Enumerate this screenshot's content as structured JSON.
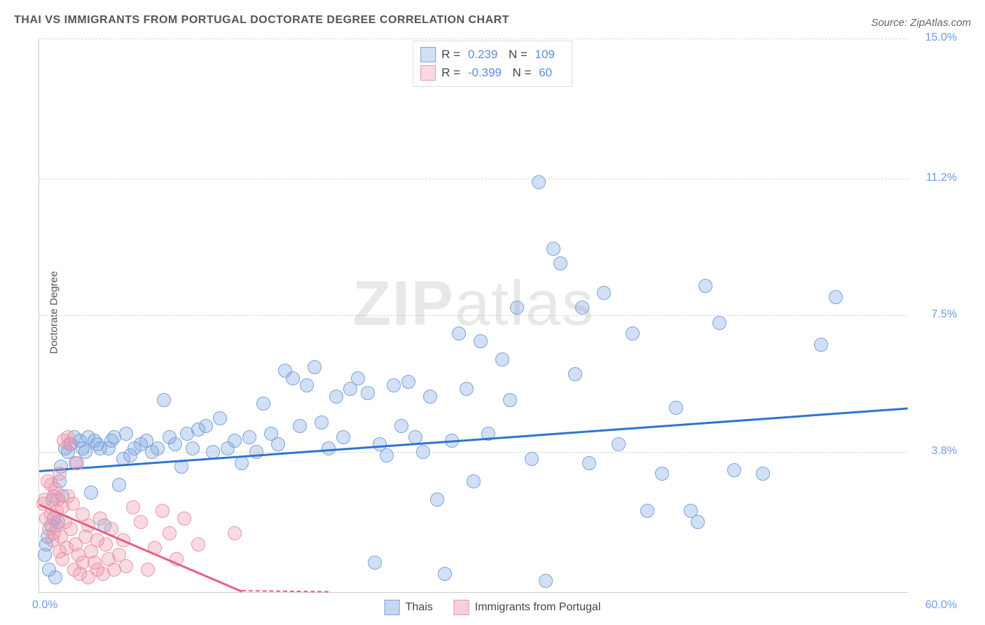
{
  "title": "THAI VS IMMIGRANTS FROM PORTUGAL DOCTORATE DEGREE CORRELATION CHART",
  "source": "Source: ZipAtlas.com",
  "yaxis_label": "Doctorate Degree",
  "watermark": {
    "bold": "ZIP",
    "rest": "atlas"
  },
  "chart": {
    "type": "scatter",
    "xlim": [
      0,
      60
    ],
    "ylim": [
      0,
      15
    ],
    "x_min_label": "0.0%",
    "x_max_label": "60.0%",
    "yticks": [
      {
        "v": 3.8,
        "label": "3.8%"
      },
      {
        "v": 7.5,
        "label": "7.5%"
      },
      {
        "v": 11.2,
        "label": "11.2%"
      },
      {
        "v": 15.0,
        "label": "15.0%"
      }
    ],
    "grid_color": "#d8d8d8",
    "background_color": "#ffffff",
    "marker_radius": 10,
    "marker_border_width": 1.5
  },
  "series": [
    {
      "name": "Thais",
      "label": "Thais",
      "marker_fill": "rgba(125,165,225,0.35)",
      "marker_stroke": "#7ba3da",
      "trend_color": "#2e74d0",
      "trend": {
        "x1": 0,
        "y1": 3.3,
        "x2": 60,
        "y2": 5.0
      },
      "R": "0.239",
      "N": "109",
      "points": [
        [
          0.4,
          1.0
        ],
        [
          0.5,
          1.3
        ],
        [
          0.6,
          1.5
        ],
        [
          0.7,
          0.6
        ],
        [
          0.8,
          1.8
        ],
        [
          0.9,
          2.5
        ],
        [
          1.0,
          2.0
        ],
        [
          1.1,
          0.4
        ],
        [
          1.3,
          1.9
        ],
        [
          1.4,
          3.0
        ],
        [
          1.5,
          3.4
        ],
        [
          1.6,
          2.6
        ],
        [
          1.8,
          3.9
        ],
        [
          2.0,
          3.8
        ],
        [
          2.2,
          4.0
        ],
        [
          2.4,
          4.2
        ],
        [
          2.5,
          3.5
        ],
        [
          2.8,
          4.1
        ],
        [
          3.0,
          3.9
        ],
        [
          3.2,
          3.8
        ],
        [
          3.4,
          4.2
        ],
        [
          3.6,
          2.7
        ],
        [
          3.8,
          4.1
        ],
        [
          4.0,
          4.0
        ],
        [
          4.2,
          3.9
        ],
        [
          4.5,
          1.8
        ],
        [
          4.8,
          3.9
        ],
        [
          5.0,
          4.1
        ],
        [
          5.2,
          4.2
        ],
        [
          5.5,
          2.9
        ],
        [
          5.8,
          3.6
        ],
        [
          6.0,
          4.3
        ],
        [
          6.3,
          3.7
        ],
        [
          6.6,
          3.9
        ],
        [
          7.0,
          4.0
        ],
        [
          7.4,
          4.1
        ],
        [
          7.8,
          3.8
        ],
        [
          8.2,
          3.9
        ],
        [
          8.6,
          5.2
        ],
        [
          9.0,
          4.2
        ],
        [
          9.4,
          4.0
        ],
        [
          9.8,
          3.4
        ],
        [
          10.2,
          4.3
        ],
        [
          10.6,
          3.9
        ],
        [
          11.0,
          4.4
        ],
        [
          11.5,
          4.5
        ],
        [
          12.0,
          3.8
        ],
        [
          12.5,
          4.7
        ],
        [
          13.0,
          3.9
        ],
        [
          13.5,
          4.1
        ],
        [
          14.0,
          3.5
        ],
        [
          14.5,
          4.2
        ],
        [
          15.0,
          3.8
        ],
        [
          15.5,
          5.1
        ],
        [
          16.0,
          4.3
        ],
        [
          16.5,
          4.0
        ],
        [
          17.0,
          6.0
        ],
        [
          17.5,
          5.8
        ],
        [
          18.0,
          4.5
        ],
        [
          18.5,
          5.6
        ],
        [
          19.0,
          6.1
        ],
        [
          19.5,
          4.6
        ],
        [
          20.0,
          3.9
        ],
        [
          20.5,
          5.3
        ],
        [
          21.0,
          4.2
        ],
        [
          21.5,
          5.5
        ],
        [
          22.0,
          5.8
        ],
        [
          22.7,
          5.4
        ],
        [
          23.2,
          0.8
        ],
        [
          23.5,
          4.0
        ],
        [
          24.0,
          3.7
        ],
        [
          24.5,
          5.6
        ],
        [
          25.0,
          4.5
        ],
        [
          25.5,
          5.7
        ],
        [
          26.0,
          4.2
        ],
        [
          26.5,
          3.8
        ],
        [
          27.0,
          5.3
        ],
        [
          27.5,
          2.5
        ],
        [
          28.0,
          0.5
        ],
        [
          28.5,
          4.1
        ],
        [
          29.0,
          7.0
        ],
        [
          29.5,
          5.5
        ],
        [
          30.0,
          3.0
        ],
        [
          30.5,
          6.8
        ],
        [
          31.0,
          4.3
        ],
        [
          32.0,
          6.3
        ],
        [
          32.5,
          5.2
        ],
        [
          33.0,
          7.7
        ],
        [
          34.0,
          3.6
        ],
        [
          34.5,
          11.1
        ],
        [
          35.0,
          0.3
        ],
        [
          35.5,
          9.3
        ],
        [
          36.0,
          8.9
        ],
        [
          37.0,
          5.9
        ],
        [
          37.5,
          7.7
        ],
        [
          38.0,
          3.5
        ],
        [
          39.0,
          8.1
        ],
        [
          40.0,
          4.0
        ],
        [
          41.0,
          7.0
        ],
        [
          42.0,
          2.2
        ],
        [
          43.0,
          3.2
        ],
        [
          44.0,
          5.0
        ],
        [
          45.0,
          2.2
        ],
        [
          45.5,
          1.9
        ],
        [
          46.0,
          8.3
        ],
        [
          47.0,
          7.3
        ],
        [
          48.0,
          3.3
        ],
        [
          50.0,
          3.2
        ],
        [
          54.0,
          6.7
        ],
        [
          55.0,
          8.0
        ]
      ]
    },
    {
      "name": "Immigrants from Portugal",
      "label": "Immigrants from Portugal",
      "marker_fill": "rgba(240,150,170,0.35)",
      "marker_stroke": "#e996ab",
      "trend_color": "#e85f82",
      "trend": {
        "x1": 0,
        "y1": 2.4,
        "x2": 14,
        "y2": 0.05
      },
      "trend_dash": {
        "x1": 14,
        "y1": 0.05,
        "x2": 20,
        "y2": 0.02
      },
      "R": "-0.399",
      "N": "60",
      "points": [
        [
          0.3,
          2.4
        ],
        [
          0.4,
          2.5
        ],
        [
          0.5,
          2.0
        ],
        [
          0.6,
          3.0
        ],
        [
          0.7,
          1.7
        ],
        [
          0.8,
          2.9
        ],
        [
          0.8,
          2.1
        ],
        [
          0.9,
          1.4
        ],
        [
          1.0,
          2.6
        ],
        [
          1.0,
          1.6
        ],
        [
          1.1,
          2.8
        ],
        [
          1.2,
          1.8
        ],
        [
          1.2,
          2.2
        ],
        [
          1.3,
          2.5
        ],
        [
          1.4,
          1.1
        ],
        [
          1.4,
          3.2
        ],
        [
          1.5,
          1.5
        ],
        [
          1.6,
          0.9
        ],
        [
          1.6,
          2.3
        ],
        [
          1.7,
          4.1
        ],
        [
          1.8,
          1.9
        ],
        [
          1.9,
          1.2
        ],
        [
          2.0,
          2.6
        ],
        [
          2.0,
          4.2
        ],
        [
          2.1,
          4.0
        ],
        [
          2.2,
          1.7
        ],
        [
          2.3,
          2.4
        ],
        [
          2.4,
          0.6
        ],
        [
          2.5,
          1.3
        ],
        [
          2.6,
          3.5
        ],
        [
          2.7,
          1.0
        ],
        [
          2.8,
          0.5
        ],
        [
          3.0,
          0.8
        ],
        [
          3.0,
          2.1
        ],
        [
          3.2,
          1.5
        ],
        [
          3.4,
          0.4
        ],
        [
          3.4,
          1.8
        ],
        [
          3.6,
          1.1
        ],
        [
          3.8,
          0.8
        ],
        [
          4.0,
          1.4
        ],
        [
          4.0,
          0.6
        ],
        [
          4.2,
          2.0
        ],
        [
          4.4,
          0.5
        ],
        [
          4.6,
          1.3
        ],
        [
          4.8,
          0.9
        ],
        [
          5.0,
          1.7
        ],
        [
          5.2,
          0.6
        ],
        [
          5.5,
          1.0
        ],
        [
          5.8,
          1.4
        ],
        [
          6.0,
          0.7
        ],
        [
          6.5,
          2.3
        ],
        [
          7.0,
          1.9
        ],
        [
          7.5,
          0.6
        ],
        [
          8.0,
          1.2
        ],
        [
          8.5,
          2.2
        ],
        [
          9.0,
          1.6
        ],
        [
          9.5,
          0.9
        ],
        [
          10.0,
          2.0
        ],
        [
          11.0,
          1.3
        ],
        [
          13.5,
          1.6
        ]
      ]
    }
  ],
  "legend_top": {
    "R_label": "R =",
    "N_label": "N ="
  },
  "legend_bottom": {
    "swatches": [
      {
        "fill": "rgba(125,165,225,0.45)",
        "stroke": "#7ba3da",
        "label": "Thais"
      },
      {
        "fill": "rgba(240,150,170,0.45)",
        "stroke": "#e996ab",
        "label": "Immigrants from Portugal"
      }
    ]
  }
}
